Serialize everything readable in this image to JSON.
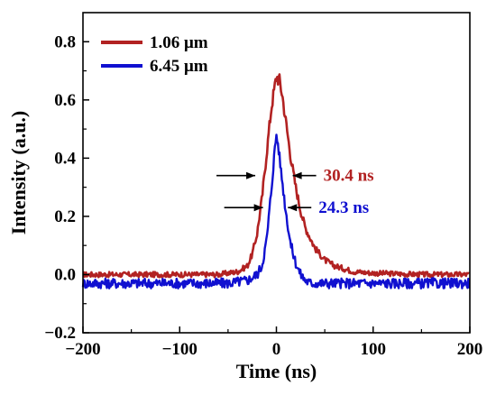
{
  "chart_data": {
    "type": "line",
    "title": "",
    "xlabel": "Time (ns)",
    "ylabel": "Intensity (a.u.)",
    "xlim": [
      -200,
      200
    ],
    "ylim": [
      -0.2,
      0.9
    ],
    "xticks": [
      -200,
      -100,
      0,
      100,
      200
    ],
    "yticks": [
      -0.2,
      0.0,
      0.2,
      0.4,
      0.6,
      0.8
    ],
    "xtick_labels": [
      "−200",
      "−100",
      "0",
      "100",
      "200"
    ],
    "ytick_labels": [
      "−0.2",
      "0.0",
      "0.2",
      "0.4",
      "0.6",
      "0.8"
    ],
    "grid": false,
    "legend_position": "top-left",
    "series": [
      {
        "name": "1.06 μm",
        "color": "#b22222",
        "x": [
          -200,
          -150,
          -100,
          -60,
          -40,
          -30,
          -25,
          -20,
          -15,
          -10,
          -5,
          0,
          3,
          6,
          10,
          15,
          20,
          25,
          30,
          40,
          50,
          60,
          80,
          100,
          150,
          200
        ],
        "y": [
          0.0,
          0.0,
          0.0,
          0.0,
          0.01,
          0.03,
          0.07,
          0.14,
          0.26,
          0.42,
          0.58,
          0.68,
          0.67,
          0.62,
          0.52,
          0.4,
          0.3,
          0.22,
          0.16,
          0.09,
          0.05,
          0.03,
          0.01,
          0.005,
          0.0,
          0.0
        ]
      },
      {
        "name": "6.45 μm",
        "color": "#1010d0",
        "x": [
          -200,
          -150,
          -100,
          -50,
          -30,
          -20,
          -15,
          -10,
          -5,
          -2,
          0,
          2,
          5,
          10,
          15,
          20,
          25,
          30,
          35,
          40,
          60,
          100,
          150,
          200
        ],
        "y": [
          -0.03,
          -0.03,
          -0.03,
          -0.03,
          -0.02,
          0.0,
          0.03,
          0.12,
          0.3,
          0.42,
          0.48,
          0.44,
          0.35,
          0.21,
          0.1,
          0.04,
          0.0,
          -0.02,
          -0.03,
          -0.03,
          -0.03,
          -0.03,
          -0.03,
          -0.03
        ]
      }
    ],
    "annotations": [
      {
        "text": "30.4 ns",
        "color": "#b22222",
        "y": 0.34,
        "x_left": -20,
        "x_right": 15
      },
      {
        "text": "24.3 ns",
        "color": "#1010d0",
        "y": 0.23,
        "x_left": -12,
        "x_right": 10
      }
    ]
  }
}
